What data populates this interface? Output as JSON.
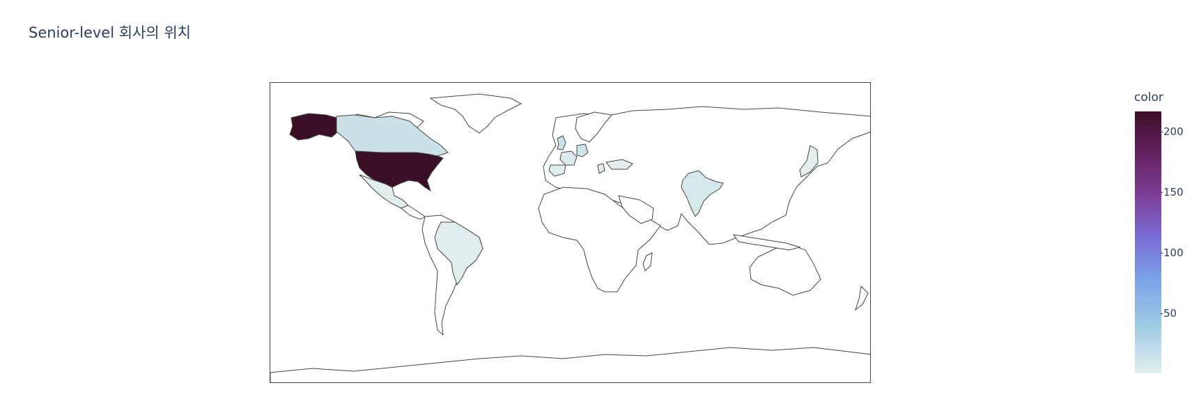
{
  "title": "Senior-level 회사의 위치",
  "map": {
    "type": "choropleth",
    "projection": "equirectangular",
    "land_outline_color": "#444444",
    "background_color": "#ffffff"
  },
  "chart_data": {
    "type": "choropleth",
    "title": "Senior-level 회사의 위치",
    "locations": [
      {
        "country": "United States",
        "value": 218,
        "color": "#3b0f26"
      },
      {
        "country": "Canada",
        "value": 22,
        "color": "#c9e1e7"
      },
      {
        "country": "Brazil",
        "value": 6,
        "color": "#e1eeee"
      },
      {
        "country": "India",
        "value": 12,
        "color": "#d5e8ec"
      },
      {
        "country": "United Kingdom",
        "value": 20,
        "color": "#c9e1e7"
      },
      {
        "country": "Germany",
        "value": 18,
        "color": "#cde3e9"
      },
      {
        "country": "France",
        "value": 8,
        "color": "#dcebee"
      },
      {
        "country": "Spain",
        "value": 6,
        "color": "#dfedee"
      },
      {
        "country": "Greece",
        "value": 3,
        "color": "#e2efee"
      },
      {
        "country": "Turkey",
        "value": 3,
        "color": "#e2efee"
      },
      {
        "country": "Mexico",
        "value": 4,
        "color": "#e1eeee"
      },
      {
        "country": "Japan",
        "value": 2,
        "color": "#e4f0f0"
      }
    ],
    "colorbar": {
      "title": "color",
      "ticks": [
        "200",
        "150",
        "100",
        "50"
      ],
      "tick_values": [
        200,
        150,
        100,
        50
      ],
      "range": [
        0,
        220
      ]
    }
  }
}
